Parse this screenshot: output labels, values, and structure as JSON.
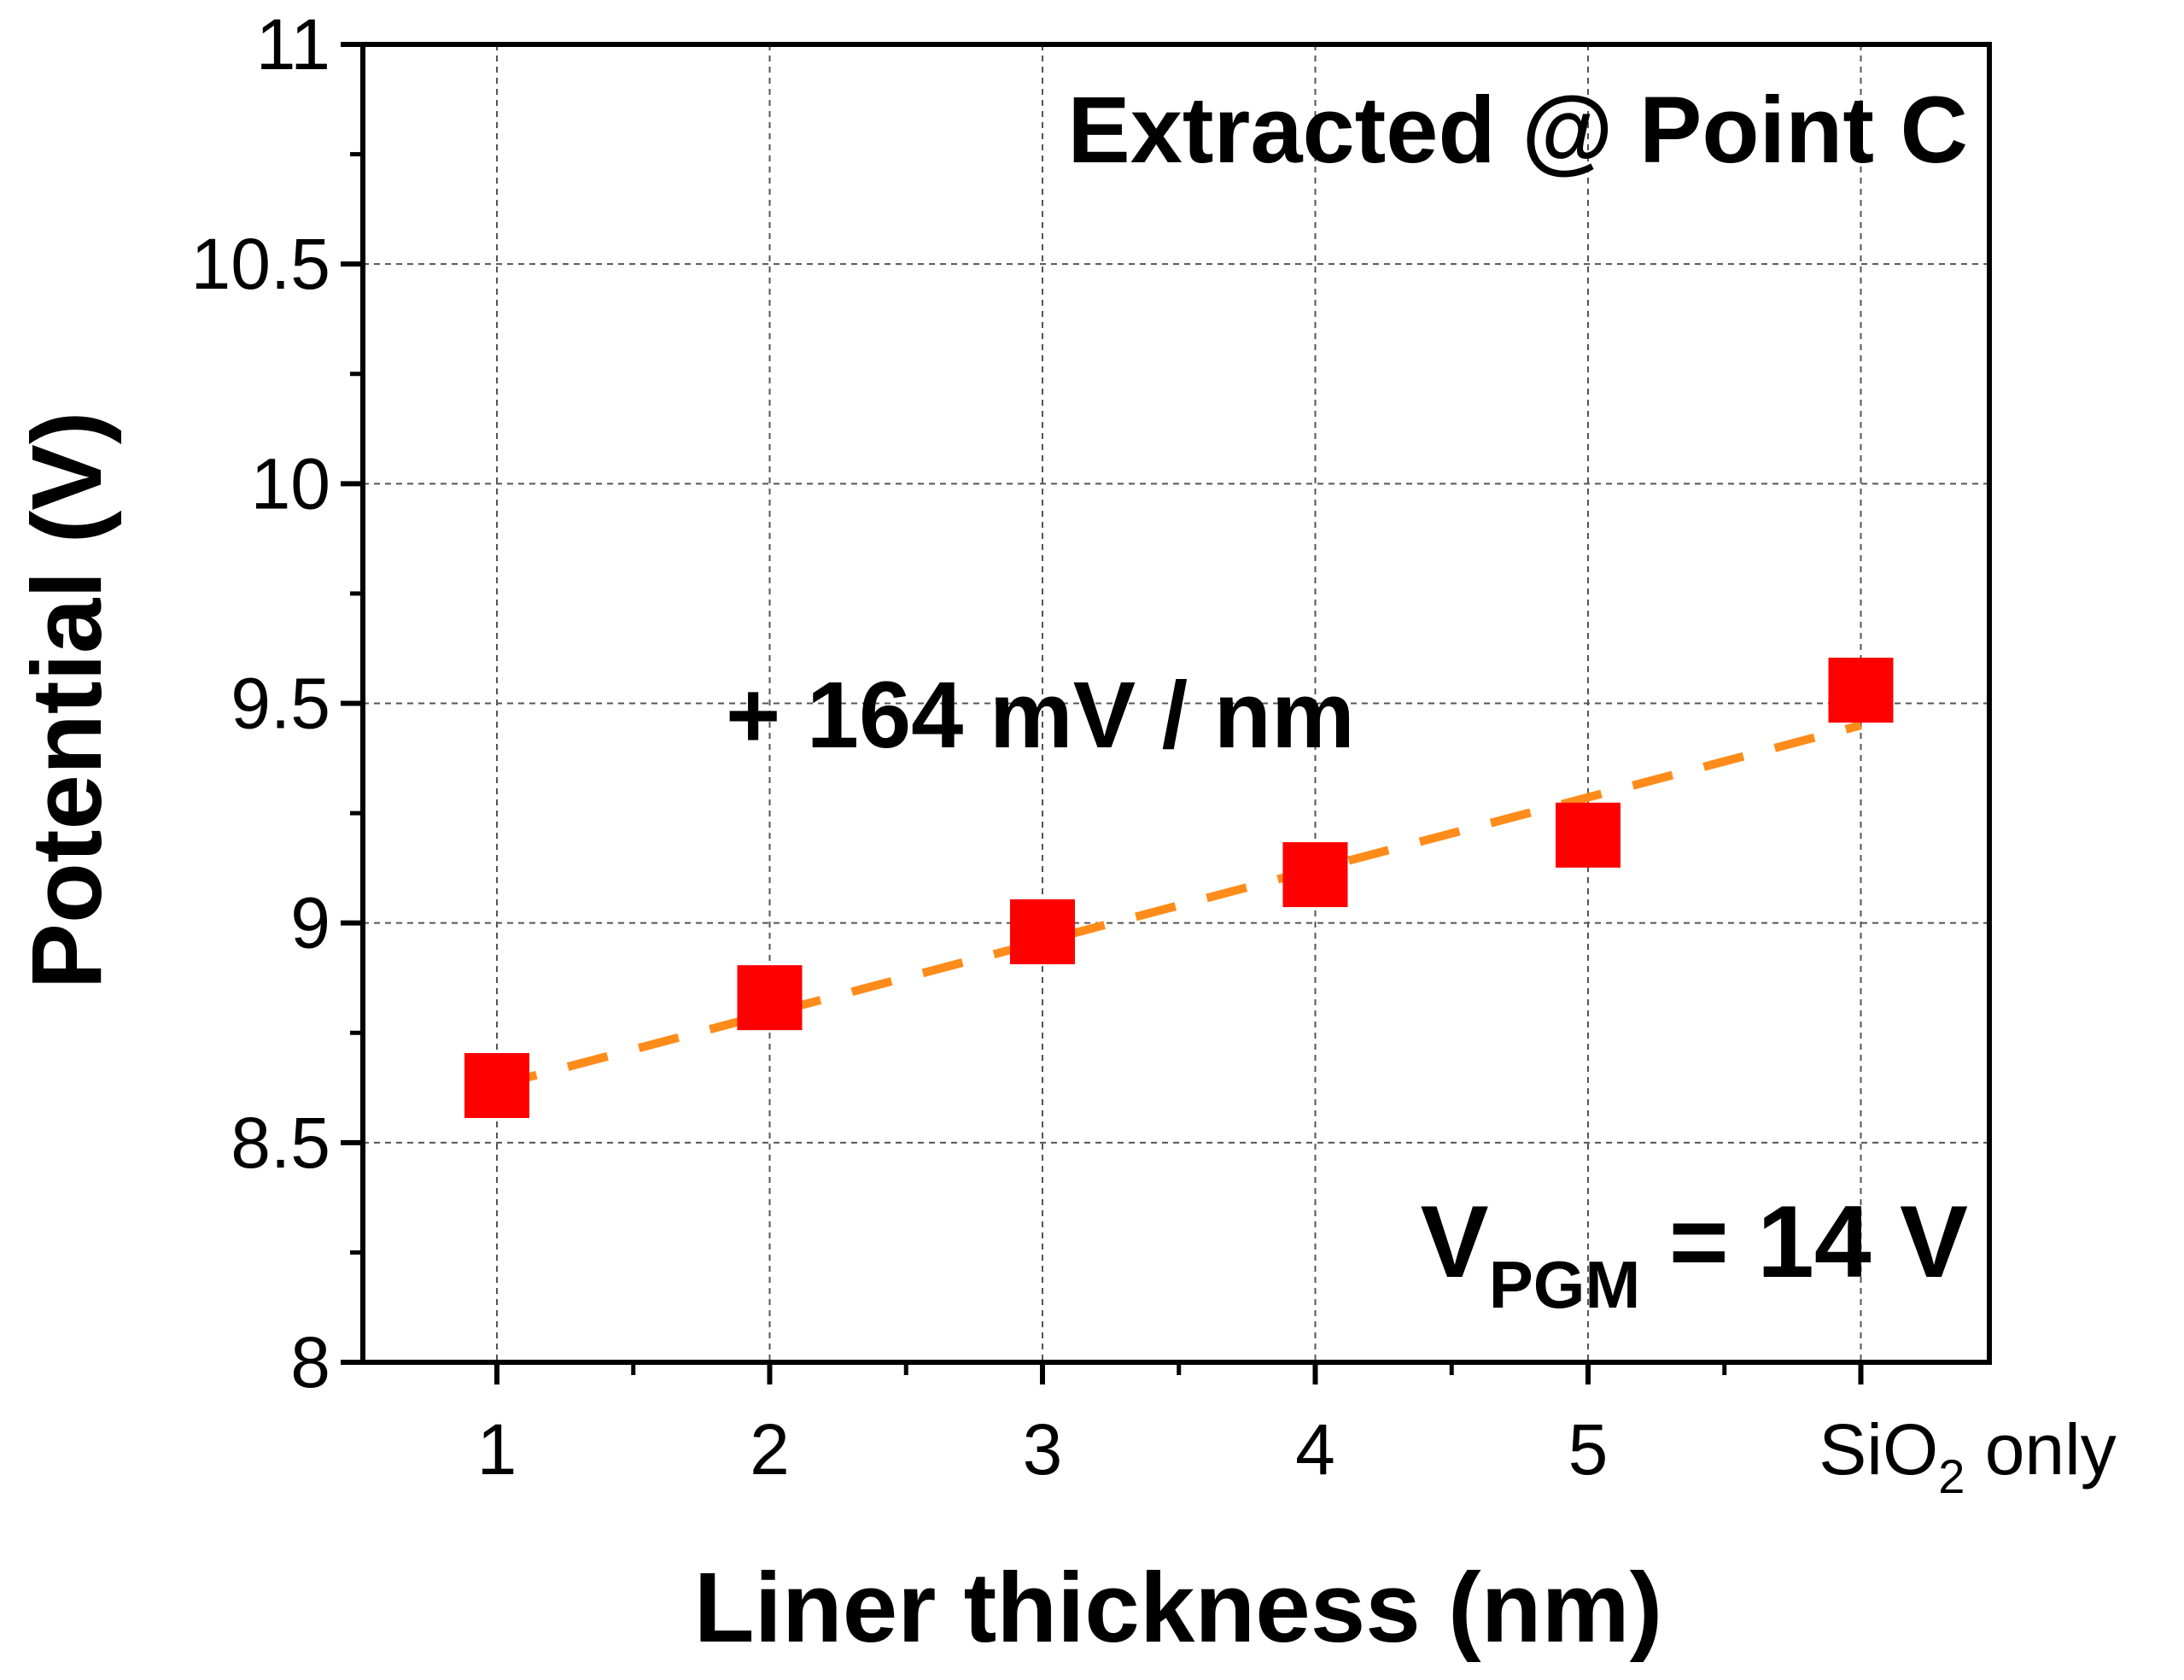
{
  "chart_data": {
    "type": "scatter",
    "title": "",
    "xlabel": "Liner thickness (nm)",
    "ylabel": "Potential (V)",
    "categories": [
      "1",
      "2",
      "3",
      "4",
      "5",
      "SiO2 only"
    ],
    "x_ticks": [
      {
        "label": "1"
      },
      {
        "label": "2"
      },
      {
        "label": "3"
      },
      {
        "label": "4"
      },
      {
        "label": "5"
      },
      {
        "label": "SiO",
        "sub": "2",
        "suffix": " only"
      }
    ],
    "ylim": [
      8,
      11
    ],
    "y_ticks": [
      8,
      8.5,
      9,
      9.5,
      10,
      10.5,
      11
    ],
    "y_tick_labels": [
      "8",
      "8.5",
      "9",
      "9.5",
      "10",
      "10.5",
      "11"
    ],
    "grid": true,
    "series": [
      {
        "name": "Potential",
        "marker": "square",
        "color": "#ff0000",
        "values": [
          8.63,
          8.83,
          8.98,
          9.11,
          9.2,
          9.53
        ]
      }
    ],
    "fit_line": {
      "style": "dashed",
      "color": "#ff8c1a",
      "x_start": 1,
      "x_end": 6,
      "y_start": 8.63,
      "y_end": 9.45
    },
    "annotations": {
      "point_label": "Extracted @ Point C",
      "slope": "+ 164 mV / nm",
      "vpgm_main": "V",
      "vpgm_sub": "PGM",
      "vpgm_rest": " = 14 V"
    }
  }
}
